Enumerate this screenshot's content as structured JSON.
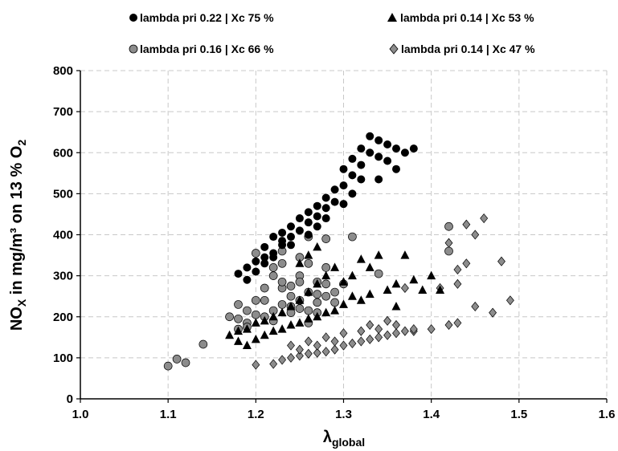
{
  "chart_data": {
    "type": "scatter",
    "title": "",
    "xlabel": {
      "main": "λ",
      "sub": "global"
    },
    "ylabel": {
      "pre": "NO",
      "sub1": "X",
      "mid": " in mg/m³ on 13 % O",
      "sub2": "2"
    },
    "xlim": [
      1.0,
      1.6
    ],
    "ylim": [
      0,
      800
    ],
    "xticks": [
      1.0,
      1.1,
      1.2,
      1.3,
      1.4,
      1.5,
      1.6
    ],
    "xtick_labels": [
      "1.0",
      "1.1",
      "1.2",
      "1.3",
      "1.4",
      "1.5",
      "1.6"
    ],
    "yticks": [
      0,
      100,
      200,
      300,
      400,
      500,
      600,
      700,
      800
    ],
    "ytick_labels": [
      "0",
      "100",
      "200",
      "300",
      "400",
      "500",
      "600",
      "700",
      "800"
    ],
    "grid": true,
    "legend_position": "top",
    "series": [
      {
        "name": "lambda pri 0.22 | Xc 75 %",
        "marker": "circle",
        "color": "#000000",
        "points": [
          [
            1.18,
            305
          ],
          [
            1.19,
            290
          ],
          [
            1.19,
            320
          ],
          [
            1.2,
            335
          ],
          [
            1.2,
            310
          ],
          [
            1.21,
            370
          ],
          [
            1.21,
            345
          ],
          [
            1.22,
            395
          ],
          [
            1.22,
            355
          ],
          [
            1.23,
            405
          ],
          [
            1.23,
            375
          ],
          [
            1.24,
            420
          ],
          [
            1.24,
            395
          ],
          [
            1.25,
            440
          ],
          [
            1.25,
            410
          ],
          [
            1.26,
            455
          ],
          [
            1.26,
            430
          ],
          [
            1.27,
            470
          ],
          [
            1.27,
            445
          ],
          [
            1.28,
            490
          ],
          [
            1.28,
            465
          ],
          [
            1.29,
            510
          ],
          [
            1.29,
            480
          ],
          [
            1.3,
            560
          ],
          [
            1.3,
            520
          ],
          [
            1.31,
            585
          ],
          [
            1.31,
            545
          ],
          [
            1.32,
            610
          ],
          [
            1.32,
            570
          ],
          [
            1.33,
            640
          ],
          [
            1.33,
            600
          ],
          [
            1.34,
            630
          ],
          [
            1.34,
            590
          ],
          [
            1.35,
            620
          ],
          [
            1.35,
            580
          ],
          [
            1.36,
            610
          ],
          [
            1.37,
            600
          ],
          [
            1.38,
            610
          ],
          [
            1.36,
            560
          ],
          [
            1.34,
            535
          ],
          [
            1.32,
            535
          ],
          [
            1.31,
            500
          ],
          [
            1.3,
            475
          ],
          [
            1.28,
            440
          ],
          [
            1.27,
            420
          ],
          [
            1.26,
            400
          ],
          [
            1.24,
            375
          ],
          [
            1.23,
            385
          ],
          [
            1.22,
            345
          ],
          [
            1.21,
            330
          ]
        ]
      },
      {
        "name": "lambda pri 0.14 | Xc 53 %",
        "marker": "triangle",
        "color": "#000000",
        "points": [
          [
            1.17,
            155
          ],
          [
            1.18,
            140
          ],
          [
            1.18,
            165
          ],
          [
            1.19,
            130
          ],
          [
            1.19,
            170
          ],
          [
            1.2,
            145
          ],
          [
            1.2,
            185
          ],
          [
            1.21,
            155
          ],
          [
            1.21,
            190
          ],
          [
            1.22,
            165
          ],
          [
            1.22,
            200
          ],
          [
            1.23,
            170
          ],
          [
            1.23,
            210
          ],
          [
            1.24,
            180
          ],
          [
            1.24,
            225
          ],
          [
            1.25,
            185
          ],
          [
            1.25,
            240
          ],
          [
            1.26,
            195
          ],
          [
            1.26,
            260
          ],
          [
            1.27,
            200
          ],
          [
            1.27,
            280
          ],
          [
            1.28,
            210
          ],
          [
            1.28,
            300
          ],
          [
            1.29,
            215
          ],
          [
            1.29,
            320
          ],
          [
            1.3,
            230
          ],
          [
            1.3,
            285
          ],
          [
            1.31,
            250
          ],
          [
            1.31,
            300
          ],
          [
            1.32,
            240
          ],
          [
            1.32,
            340
          ],
          [
            1.33,
            255
          ],
          [
            1.34,
            350
          ],
          [
            1.35,
            265
          ],
          [
            1.36,
            280
          ],
          [
            1.37,
            350
          ],
          [
            1.38,
            290
          ],
          [
            1.39,
            265
          ],
          [
            1.4,
            300
          ],
          [
            1.41,
            265
          ],
          [
            1.27,
            370
          ],
          [
            1.26,
            350
          ],
          [
            1.25,
            330
          ],
          [
            1.33,
            320
          ],
          [
            1.36,
            225
          ]
        ]
      },
      {
        "name": "lambda pri 0.16 | Xc 66 %",
        "marker": "circle",
        "color": "#8c8c8c",
        "points": [
          [
            1.1,
            80
          ],
          [
            1.11,
            97
          ],
          [
            1.12,
            88
          ],
          [
            1.14,
            133
          ],
          [
            1.17,
            200
          ],
          [
            1.18,
            195
          ],
          [
            1.18,
            230
          ],
          [
            1.19,
            185
          ],
          [
            1.19,
            215
          ],
          [
            1.2,
            205
          ],
          [
            1.2,
            240
          ],
          [
            1.21,
            200
          ],
          [
            1.21,
            270
          ],
          [
            1.22,
            215
          ],
          [
            1.22,
            300
          ],
          [
            1.23,
            230
          ],
          [
            1.23,
            330
          ],
          [
            1.24,
            225
          ],
          [
            1.24,
            275
          ],
          [
            1.25,
            240
          ],
          [
            1.25,
            300
          ],
          [
            1.26,
            215
          ],
          [
            1.26,
            260
          ],
          [
            1.27,
            235
          ],
          [
            1.27,
            285
          ],
          [
            1.28,
            250
          ],
          [
            1.28,
            320
          ],
          [
            1.29,
            260
          ],
          [
            1.3,
            280
          ],
          [
            1.31,
            395
          ],
          [
            1.28,
            390
          ],
          [
            1.26,
            395
          ],
          [
            1.23,
            360
          ],
          [
            1.22,
            320
          ],
          [
            1.25,
            345
          ],
          [
            1.24,
            210
          ],
          [
            1.22,
            190
          ],
          [
            1.19,
            175
          ],
          [
            1.18,
            170
          ],
          [
            1.26,
            185
          ],
          [
            1.27,
            210
          ],
          [
            1.29,
            235
          ],
          [
            1.21,
            240
          ],
          [
            1.24,
            250
          ],
          [
            1.23,
            270
          ],
          [
            1.25,
            285
          ],
          [
            1.26,
            330
          ],
          [
            1.28,
            280
          ],
          [
            1.34,
            305
          ],
          [
            1.42,
            420
          ],
          [
            1.42,
            360
          ],
          [
            1.2,
            355
          ],
          [
            1.23,
            285
          ],
          [
            1.25,
            220
          ],
          [
            1.27,
            255
          ]
        ]
      },
      {
        "name": "lambda pri 0.14 | Xc 47 %",
        "marker": "diamond",
        "color": "#8c8c8c",
        "points": [
          [
            1.2,
            83
          ],
          [
            1.22,
            85
          ],
          [
            1.23,
            95
          ],
          [
            1.24,
            100
          ],
          [
            1.25,
            105
          ],
          [
            1.26,
            110
          ],
          [
            1.27,
            112
          ],
          [
            1.28,
            115
          ],
          [
            1.29,
            120
          ],
          [
            1.3,
            130
          ],
          [
            1.31,
            135
          ],
          [
            1.32,
            140
          ],
          [
            1.33,
            145
          ],
          [
            1.34,
            150
          ],
          [
            1.35,
            155
          ],
          [
            1.36,
            160
          ],
          [
            1.37,
            165
          ],
          [
            1.38,
            165
          ],
          [
            1.4,
            170
          ],
          [
            1.42,
            180
          ],
          [
            1.43,
            185
          ],
          [
            1.24,
            130
          ],
          [
            1.26,
            140
          ],
          [
            1.28,
            150
          ],
          [
            1.3,
            160
          ],
          [
            1.32,
            165
          ],
          [
            1.34,
            170
          ],
          [
            1.36,
            180
          ],
          [
            1.38,
            170
          ],
          [
            1.41,
            270
          ],
          [
            1.43,
            315
          ],
          [
            1.44,
            330
          ],
          [
            1.45,
            400
          ],
          [
            1.44,
            425
          ],
          [
            1.46,
            440
          ],
          [
            1.45,
            225
          ],
          [
            1.47,
            210
          ],
          [
            1.48,
            335
          ],
          [
            1.49,
            240
          ],
          [
            1.43,
            280
          ],
          [
            1.42,
            380
          ],
          [
            1.35,
            190
          ],
          [
            1.33,
            180
          ],
          [
            1.29,
            140
          ],
          [
            1.27,
            130
          ],
          [
            1.25,
            120
          ],
          [
            1.37,
            270
          ]
        ]
      }
    ]
  }
}
